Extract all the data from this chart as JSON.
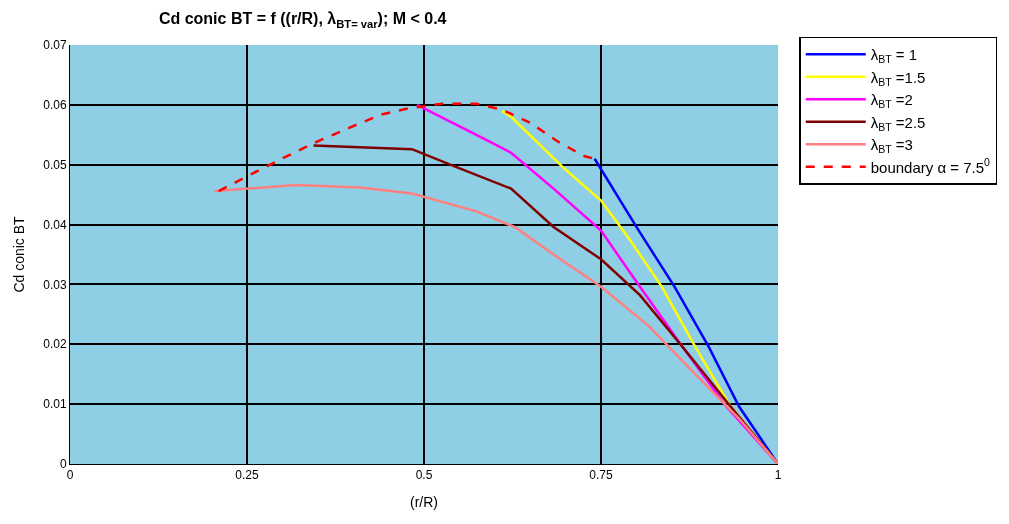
{
  "chart_data": {
    "type": "line",
    "title": "Cd conic BT = f ((r/R), λ$_{BT= var}$); M < 0.4",
    "xlabel": "(r/R)",
    "ylabel": "Cd conic BT",
    "xlim": [
      0,
      1
    ],
    "xticks": [
      0,
      0.25,
      0.5,
      0.75,
      1
    ],
    "ylim": [
      0,
      0.07
    ],
    "yticks": [
      0,
      0.01,
      0.02,
      0.03,
      0.04,
      0.05,
      0.06,
      0.07
    ],
    "grid": true,
    "legend": "right",
    "line_style": "solid",
    "series": [
      {
        "name": "λ$_{BT}$ = 1",
        "color": "#0000ff",
        "x": [
          0.741,
          0.8,
          0.854,
          0.902,
          0.945,
          1
        ],
        "values": [
          0.051,
          0.0396,
          0.0296,
          0.0196,
          0.0096,
          0
        ]
      },
      {
        "name": "λ$_{BT}$ =1.5",
        "color": "#ffff00",
        "x": [
          0.61,
          0.623,
          0.696,
          0.75,
          0.79,
          0.836,
          0.883,
          0.933,
          1
        ],
        "values": [
          0.059,
          0.058,
          0.0496,
          0.044,
          0.0376,
          0.0296,
          0.0196,
          0.0096,
          0
        ]
      },
      {
        "name": "λ$_{BT}$ =2",
        "color": "#ff00ff",
        "x": [
          0.49,
          0.574,
          0.623,
          0.683,
          0.75,
          0.805,
          0.865,
          0.927,
          1
        ],
        "values": [
          0.06,
          0.055,
          0.052,
          0.046,
          0.039,
          0.0296,
          0.0196,
          0.0096,
          0
        ]
      },
      {
        "name": "λ$_{BT}$ =2.5",
        "color": "#800000",
        "x": [
          0.344,
          0.483,
          0.537,
          0.623,
          0.683,
          0.75,
          0.805,
          0.865,
          0.933,
          1
        ],
        "values": [
          0.0532,
          0.0526,
          0.05,
          0.046,
          0.0396,
          0.0342,
          0.0282,
          0.0196,
          0.0096,
          0
        ]
      },
      {
        "name": "λ$_{BT}$ =3",
        "color": "#ff8080",
        "x": [
          0.204,
          0.319,
          0.41,
          0.483,
          0.574,
          0.628,
          0.683,
          0.75,
          0.818,
          0.883,
          0.945,
          1
        ],
        "values": [
          0.0456,
          0.0466,
          0.0462,
          0.0452,
          0.0422,
          0.0396,
          0.035,
          0.0296,
          0.023,
          0.015,
          0.0076,
          0
        ]
      },
      {
        "name": "boundary α = 7.5$^{0}$",
        "color": "#ff0000",
        "line_style": "dashed",
        "x": [
          0.21,
          0.259,
          0.299,
          0.344,
          0.395,
          0.44,
          0.477,
          0.526,
          0.574,
          0.61,
          0.65,
          0.69,
          0.727,
          0.741
        ],
        "values": [
          0.0456,
          0.0486,
          0.051,
          0.0536,
          0.0562,
          0.0584,
          0.0594,
          0.0602,
          0.0602,
          0.0592,
          0.057,
          0.0538,
          0.0514,
          0.051
        ]
      }
    ]
  }
}
